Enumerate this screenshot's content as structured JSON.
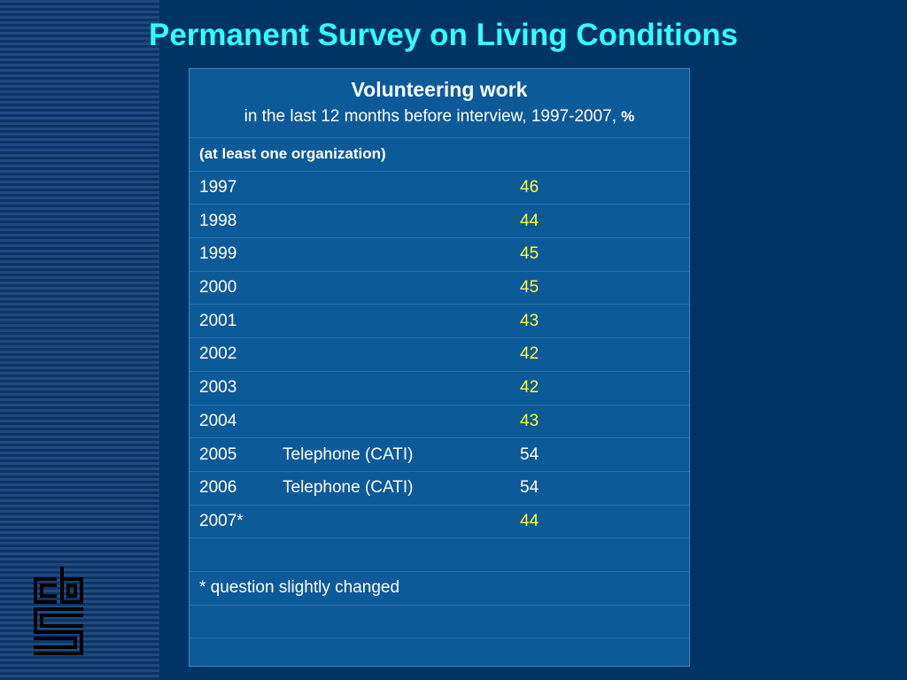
{
  "slide": {
    "title": "Permanent Survey on Living Conditions"
  },
  "table": {
    "heading": "Volunteering work",
    "subheading": "in the last 12 months before interview, 1997-2007,",
    "unit": "%",
    "subgroup": "(at least one organization)",
    "rows": [
      {
        "year": "1997",
        "mode": "",
        "value": "46"
      },
      {
        "year": "1998",
        "mode": "",
        "value": "44"
      },
      {
        "year": "1999",
        "mode": "",
        "value": "45"
      },
      {
        "year": "2000",
        "mode": "",
        "value": "45"
      },
      {
        "year": "2001",
        "mode": "",
        "value": "43"
      },
      {
        "year": "2002",
        "mode": "",
        "value": "42"
      },
      {
        "year": "2003",
        "mode": "",
        "value": "42"
      },
      {
        "year": "2004",
        "mode": "",
        "value": "43"
      },
      {
        "year": "2005",
        "mode": "Telephone (CATI)",
        "value": "54"
      },
      {
        "year": "2006",
        "mode": "Telephone (CATI)",
        "value": "54"
      },
      {
        "year": "2007*",
        "mode": "",
        "value": "44"
      }
    ],
    "footnote": "* question slightly changed"
  },
  "colors": {
    "background": "#003366",
    "title": "#33ffff",
    "table_fill": "#0d5a99",
    "highlight_value": "#ffff33",
    "text": "#ffffff"
  },
  "icons": [
    "cbs-logo"
  ]
}
